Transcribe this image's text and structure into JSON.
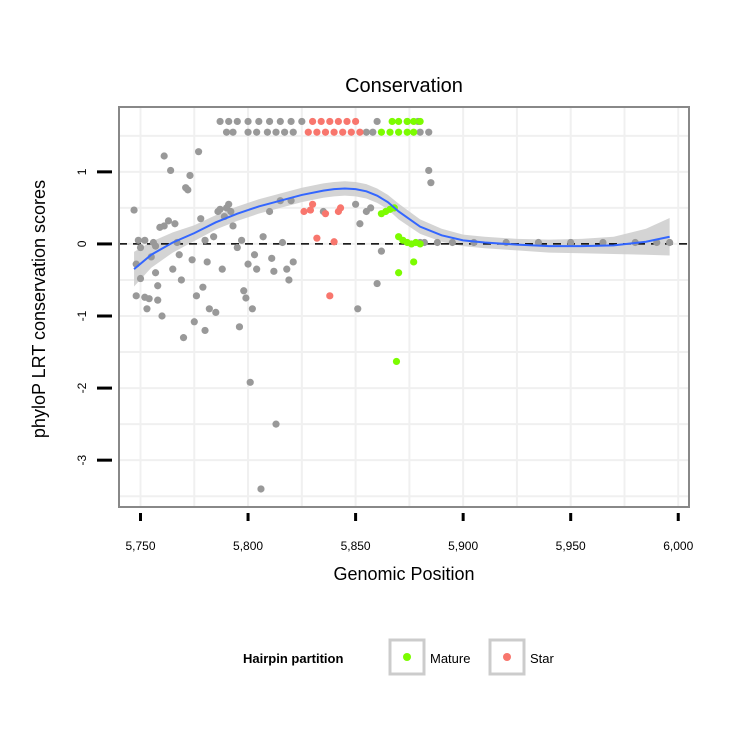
{
  "chart_data": {
    "type": "scatter",
    "title": "Conservation",
    "xlabel": "Genomic Position",
    "ylabel": "phyloP LRT conservation scores",
    "xlim": [
      5740,
      6005
    ],
    "ylim": [
      -3.65,
      1.9
    ],
    "x_ticks": [
      5750,
      5800,
      5850,
      5900,
      5950,
      6000
    ],
    "x_tick_labels": [
      "5,750",
      "5,800",
      "5,850",
      "5,900",
      "5,950",
      "6,000"
    ],
    "y_ticks": [
      -3,
      -2,
      -1,
      0,
      1
    ],
    "y_tick_labels": [
      "-3",
      "-2",
      "-1",
      "0",
      "1"
    ],
    "reference_line": {
      "y": 0,
      "style": "dashed"
    },
    "grid": true,
    "legend": {
      "title": "Hairpin partition",
      "position": "bottom",
      "entries": [
        {
          "label": "Mature",
          "color": "#7cfc00"
        },
        {
          "label": "Star",
          "color": "#f8766d"
        }
      ]
    },
    "colors": {
      "other": "#999999",
      "mature": "#7cfc00",
      "star": "#f8766d",
      "smooth": "#3366ff",
      "ribbon": "#cccccc",
      "panel_border": "#888888",
      "grid": "#f0f0f0"
    },
    "series": [
      {
        "name": "Other",
        "color": "#999999",
        "points": [
          [
            5747,
            0.47
          ],
          [
            5748,
            -0.28
          ],
          [
            5748,
            -0.72
          ],
          [
            5749,
            0.05
          ],
          [
            5750,
            -0.05
          ],
          [
            5750,
            -0.48
          ],
          [
            5752,
            -0.74
          ],
          [
            5752,
            0.05
          ],
          [
            5753,
            -0.9
          ],
          [
            5754,
            -0.76
          ],
          [
            5755,
            -0.18
          ],
          [
            5756,
            0.02
          ],
          [
            5757,
            -0.03
          ],
          [
            5757,
            -0.4
          ],
          [
            5758,
            -0.58
          ],
          [
            5758,
            -0.78
          ],
          [
            5759,
            0.23
          ],
          [
            5760,
            -1.0
          ],
          [
            5761,
            0.25
          ],
          [
            5761,
            1.22
          ],
          [
            5763,
            0.32
          ],
          [
            5764,
            1.02
          ],
          [
            5765,
            -0.35
          ],
          [
            5766,
            0.28
          ],
          [
            5767,
            0.02
          ],
          [
            5768,
            -0.15
          ],
          [
            5769,
            -0.5
          ],
          [
            5770,
            -1.3
          ],
          [
            5771,
            0.78
          ],
          [
            5772,
            0.75
          ],
          [
            5773,
            0.95
          ],
          [
            5774,
            -0.22
          ],
          [
            5775,
            -1.08
          ],
          [
            5776,
            -0.72
          ],
          [
            5777,
            1.28
          ],
          [
            5778,
            0.35
          ],
          [
            5779,
            -0.6
          ],
          [
            5780,
            -1.2
          ],
          [
            5780,
            0.05
          ],
          [
            5781,
            -0.25
          ],
          [
            5782,
            -0.9
          ],
          [
            5784,
            0.1
          ],
          [
            5785,
            -0.95
          ],
          [
            5786,
            0.45
          ],
          [
            5787,
            0.48
          ],
          [
            5788,
            -0.35
          ],
          [
            5789,
            0.38
          ],
          [
            5790,
            0.5
          ],
          [
            5791,
            0.55
          ],
          [
            5792,
            0.45
          ],
          [
            5793,
            0.25
          ],
          [
            5795,
            -0.05
          ],
          [
            5796,
            -1.15
          ],
          [
            5797,
            0.05
          ],
          [
            5798,
            -0.65
          ],
          [
            5799,
            -0.75
          ],
          [
            5800,
            -0.28
          ],
          [
            5801,
            -1.92
          ],
          [
            5802,
            -0.9
          ],
          [
            5803,
            -0.15
          ],
          [
            5804,
            -0.35
          ],
          [
            5806,
            -3.4
          ],
          [
            5807,
            0.1
          ],
          [
            5810,
            0.45
          ],
          [
            5811,
            -0.2
          ],
          [
            5812,
            -0.38
          ],
          [
            5813,
            -2.5
          ],
          [
            5815,
            0.6
          ],
          [
            5816,
            0.02
          ],
          [
            5818,
            -0.35
          ],
          [
            5819,
            -0.5
          ],
          [
            5820,
            0.6
          ],
          [
            5821,
            -0.25
          ],
          [
            5835,
            0.45
          ],
          [
            5850,
            0.55
          ],
          [
            5851,
            -0.9
          ],
          [
            5852,
            0.28
          ],
          [
            5855,
            0.45
          ],
          [
            5857,
            0.5
          ],
          [
            5860,
            -0.55
          ],
          [
            5862,
            -0.1
          ],
          [
            5880,
            0.02
          ],
          [
            5882,
            0.02
          ],
          [
            5884,
            1.02
          ],
          [
            5885,
            0.85
          ],
          [
            5787,
            1.7
          ],
          [
            5791,
            1.7
          ],
          [
            5795,
            1.7
          ],
          [
            5800,
            1.7
          ],
          [
            5805,
            1.7
          ],
          [
            5810,
            1.7
          ],
          [
            5815,
            1.7
          ],
          [
            5820,
            1.7
          ],
          [
            5825,
            1.7
          ],
          [
            5860,
            1.7
          ],
          [
            5874,
            1.7
          ],
          [
            5879,
            1.7
          ],
          [
            5790,
            1.55
          ],
          [
            5793,
            1.55
          ],
          [
            5800,
            1.55
          ],
          [
            5804,
            1.55
          ],
          [
            5809,
            1.55
          ],
          [
            5813,
            1.55
          ],
          [
            5817,
            1.55
          ],
          [
            5821,
            1.55
          ],
          [
            5855,
            1.55
          ],
          [
            5858,
            1.55
          ],
          [
            5880,
            1.55
          ],
          [
            5884,
            1.55
          ],
          [
            5888,
            0.02
          ],
          [
            5895,
            0.02
          ],
          [
            5905,
            0.02
          ],
          [
            5920,
            0.02
          ],
          [
            5935,
            0.02
          ],
          [
            5950,
            0.02
          ],
          [
            5965,
            0.02
          ],
          [
            5980,
            0.02
          ],
          [
            5990,
            0.02
          ],
          [
            5996,
            0.02
          ]
        ]
      },
      {
        "name": "Mature",
        "color": "#7cfc00",
        "points": [
          [
            5862,
            1.55
          ],
          [
            5866,
            1.55
          ],
          [
            5870,
            1.55
          ],
          [
            5874,
            1.55
          ],
          [
            5877,
            1.55
          ],
          [
            5867,
            1.7
          ],
          [
            5870,
            1.7
          ],
          [
            5874,
            1.7
          ],
          [
            5877,
            1.7
          ],
          [
            5880,
            1.7
          ],
          [
            5862,
            0.42
          ],
          [
            5864,
            0.45
          ],
          [
            5866,
            0.48
          ],
          [
            5868,
            0.5
          ],
          [
            5870,
            0.1
          ],
          [
            5872,
            0.05
          ],
          [
            5874,
            0.02
          ],
          [
            5876,
            0.0
          ],
          [
            5878,
            0.02
          ],
          [
            5880,
            0.0
          ],
          [
            5870,
            -0.4
          ],
          [
            5877,
            -0.25
          ],
          [
            5869,
            -1.63
          ]
        ]
      },
      {
        "name": "Star",
        "color": "#f8766d",
        "points": [
          [
            5828,
            1.55
          ],
          [
            5832,
            1.55
          ],
          [
            5836,
            1.55
          ],
          [
            5840,
            1.55
          ],
          [
            5844,
            1.55
          ],
          [
            5848,
            1.55
          ],
          [
            5852,
            1.55
          ],
          [
            5830,
            1.7
          ],
          [
            5834,
            1.7
          ],
          [
            5838,
            1.7
          ],
          [
            5842,
            1.7
          ],
          [
            5846,
            1.7
          ],
          [
            5850,
            1.7
          ],
          [
            5826,
            0.45
          ],
          [
            5829,
            0.47
          ],
          [
            5830,
            0.55
          ],
          [
            5836,
            0.42
          ],
          [
            5842,
            0.45
          ],
          [
            5843,
            0.5
          ],
          [
            5832,
            0.08
          ],
          [
            5840,
            0.03
          ],
          [
            5838,
            -0.72
          ]
        ]
      }
    ],
    "smooth": {
      "x": [
        5747,
        5755,
        5765,
        5775,
        5785,
        5795,
        5805,
        5815,
        5825,
        5835,
        5840,
        5845,
        5850,
        5855,
        5860,
        5865,
        5870,
        5880,
        5890,
        5900,
        5910,
        5925,
        5940,
        5955,
        5970,
        5985,
        5996
      ],
      "y": [
        -0.35,
        -0.15,
        0.02,
        0.15,
        0.3,
        0.42,
        0.52,
        0.6,
        0.68,
        0.74,
        0.76,
        0.77,
        0.76,
        0.73,
        0.67,
        0.58,
        0.45,
        0.24,
        0.12,
        0.05,
        0.02,
        -0.01,
        -0.03,
        -0.03,
        -0.02,
        0.03,
        0.1
      ],
      "se": [
        0.24,
        0.18,
        0.14,
        0.11,
        0.1,
        0.1,
        0.1,
        0.1,
        0.1,
        0.1,
        0.1,
        0.1,
        0.1,
        0.1,
        0.1,
        0.1,
        0.11,
        0.1,
        0.09,
        0.08,
        0.08,
        0.08,
        0.09,
        0.1,
        0.12,
        0.18,
        0.26
      ]
    }
  }
}
